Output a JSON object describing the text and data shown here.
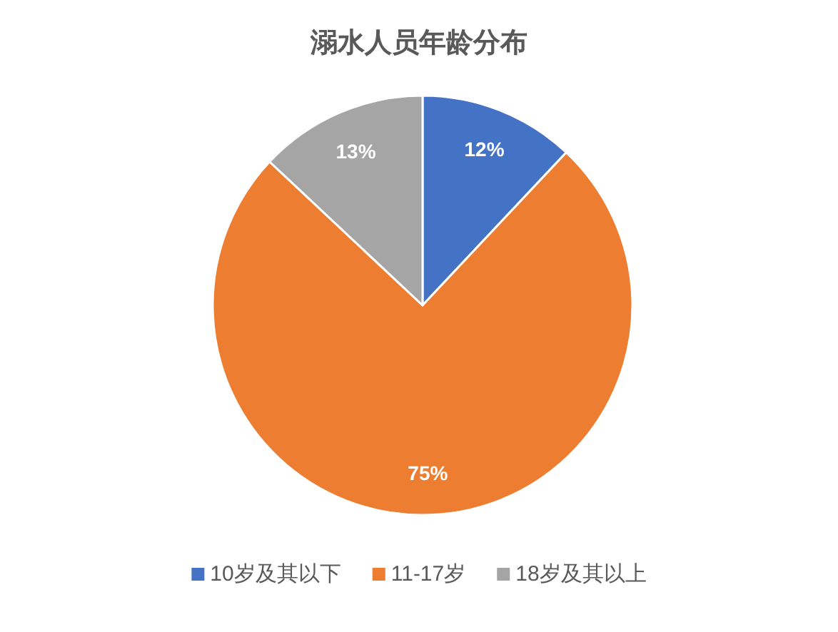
{
  "chart_data": {
    "type": "pie",
    "title": "溺水人员年龄分布",
    "categories": [
      "10岁及其以下",
      "11-17岁",
      "18岁及其以上"
    ],
    "values": [
      12,
      75,
      13
    ],
    "value_labels": [
      "12%",
      "75%",
      "13%"
    ],
    "colors": [
      "#4472c4",
      "#ed7d31",
      "#a5a5a5"
    ],
    "legend": "bottom"
  }
}
